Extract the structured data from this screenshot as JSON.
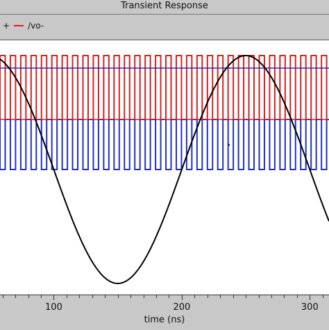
{
  "title": "Transient Response",
  "legend": {
    "leading": "+",
    "items": [
      {
        "label": "/vo-",
        "color": "#d42020"
      }
    ]
  },
  "colors": {
    "panel": "#c8c8c8",
    "red": "#d42020",
    "blue": "#2030c0",
    "black": "#000000"
  },
  "chart_data": {
    "type": "line",
    "xlabel": "time (ns)",
    "xlim": [
      58,
      315
    ],
    "x_ticks": [
      100,
      200,
      300
    ],
    "series": [
      {
        "name": "/vo-",
        "color": "#d42020",
        "kind": "square",
        "period_ns": 8.1,
        "high": 1,
        "low": 0
      },
      {
        "color": "#2030c0",
        "kind": "square",
        "period_ns": 8.1,
        "high": 1,
        "low": 0
      },
      {
        "color": "#000000",
        "kind": "sine",
        "period_ns": 200,
        "peak_at_ns": 250,
        "trough_at_ns": 150
      }
    ]
  }
}
